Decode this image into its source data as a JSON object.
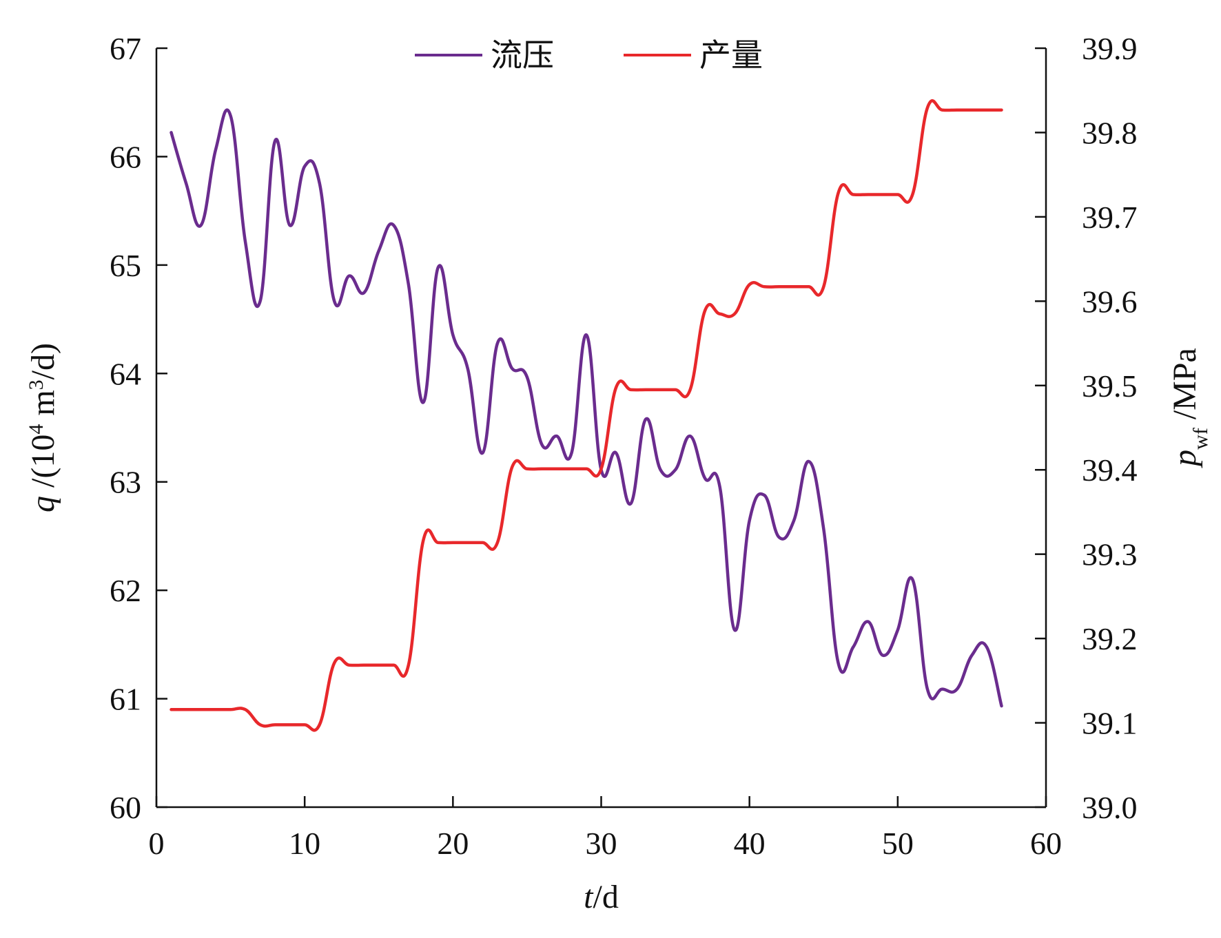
{
  "colors": {
    "flow_pressure": "#6a2c8e",
    "production": "#e8282b",
    "axis": "#111111"
  },
  "chart_data": {
    "type": "line",
    "xlabel_var": "t",
    "xlabel_unit": "/d",
    "ylabel_left_var": "q",
    "ylabel_left_pre": " /(10",
    "ylabel_left_sup1": "4",
    "ylabel_left_mid": " m",
    "ylabel_left_sup2": "3",
    "ylabel_left_post": "/d)",
    "ylabel_right_var": "p",
    "ylabel_right_sub": "wf",
    "ylabel_right_unit": " /MPa",
    "xlim": [
      0,
      60
    ],
    "ylim_left": [
      60,
      67
    ],
    "ylim_right": [
      39.0,
      39.9
    ],
    "x_ticks": [
      "0",
      "10",
      "20",
      "30",
      "40",
      "50",
      "60"
    ],
    "y_left_ticks": [
      "60",
      "61",
      "62",
      "63",
      "64",
      "65",
      "66",
      "67"
    ],
    "y_right_ticks": [
      "39.0",
      "39.1",
      "39.2",
      "39.3",
      "39.4",
      "39.5",
      "39.6",
      "39.7",
      "39.8",
      "39.9"
    ],
    "legend_position": "top-center",
    "grid": false,
    "series": [
      {
        "name": "流压",
        "axis": "right",
        "color": "#6a2c8e",
        "x": [
          1,
          2,
          3,
          4,
          5,
          6,
          7,
          8,
          9,
          10,
          11,
          12,
          13,
          14,
          15,
          16,
          17,
          18,
          19,
          20,
          21,
          22,
          23,
          24,
          25,
          26,
          27,
          28,
          29,
          30,
          31,
          32,
          33,
          34,
          35,
          36,
          37,
          38,
          39,
          40,
          41,
          42,
          43,
          44,
          45,
          46,
          47,
          48,
          49,
          50,
          51,
          52,
          53,
          54,
          55,
          56,
          57
        ],
        "values": [
          39.8,
          39.74,
          39.69,
          39.78,
          39.82,
          39.67,
          39.6,
          39.79,
          39.69,
          39.76,
          39.74,
          39.6,
          39.63,
          39.61,
          39.66,
          39.69,
          39.62,
          39.48,
          39.64,
          39.56,
          39.52,
          39.42,
          39.55,
          39.52,
          39.51,
          39.43,
          39.44,
          39.42,
          39.56,
          39.4,
          39.42,
          39.36,
          39.46,
          39.4,
          39.4,
          39.44,
          39.39,
          39.38,
          39.21,
          39.34,
          39.37,
          39.32,
          39.34,
          39.41,
          39.33,
          39.17,
          39.19,
          39.22,
          39.18,
          39.21,
          39.27,
          39.14,
          39.14,
          39.14,
          39.18,
          39.19,
          39.12
        ]
      },
      {
        "name": "产量",
        "axis": "left",
        "color": "#e8282b",
        "x": [
          1,
          2,
          3,
          4,
          5,
          6,
          7,
          8,
          9,
          10,
          11,
          12,
          13,
          14,
          15,
          16,
          17,
          18,
          19,
          20,
          21,
          22,
          23,
          24,
          25,
          26,
          27,
          28,
          29,
          30,
          31,
          32,
          33,
          34,
          35,
          36,
          37,
          38,
          39,
          40,
          41,
          42,
          43,
          44,
          45,
          46,
          47,
          48,
          49,
          50,
          51,
          52,
          53,
          54,
          55,
          56,
          57
        ],
        "values": [
          60.9,
          60.9,
          60.9,
          60.9,
          60.9,
          60.9,
          60.76,
          60.76,
          60.76,
          60.76,
          60.76,
          61.33,
          61.31,
          61.31,
          61.31,
          61.31,
          61.31,
          62.46,
          62.44,
          62.44,
          62.44,
          62.44,
          62.44,
          63.14,
          63.12,
          63.12,
          63.12,
          63.12,
          63.12,
          63.12,
          63.87,
          63.85,
          63.85,
          63.85,
          63.85,
          63.85,
          64.58,
          64.55,
          64.55,
          64.82,
          64.8,
          64.8,
          64.8,
          64.8,
          64.8,
          65.67,
          65.65,
          65.65,
          65.65,
          65.65,
          65.65,
          66.45,
          66.43,
          66.43,
          66.43,
          66.43,
          66.43
        ]
      }
    ]
  }
}
